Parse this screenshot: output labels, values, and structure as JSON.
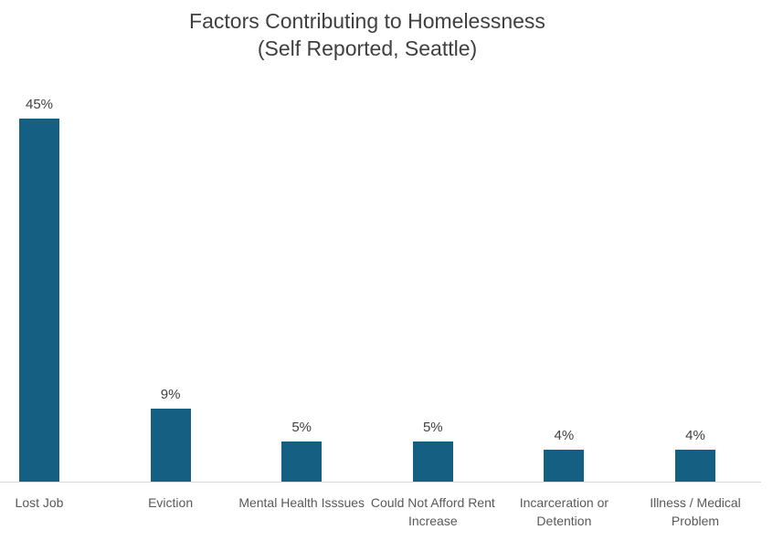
{
  "chart_data": {
    "type": "bar",
    "title": "Factors Contributing to Homelessness",
    "subtitle": "(Self Reported, Seattle)",
    "categories": [
      "Lost Job",
      "Eviction",
      "Mental Health Isssues",
      "Could Not Afford Rent Increase",
      "Incarceration or Detention",
      "Illness / Medical Problem"
    ],
    "values": [
      45,
      9,
      5,
      5,
      4,
      4
    ],
    "data_labels": [
      "45%",
      "9%",
      "5%",
      "5%",
      "4%",
      "4%"
    ],
    "xlabel": "",
    "ylabel": "",
    "ylim": [
      0,
      50
    ],
    "grid": false,
    "legend": false,
    "colors": {
      "bar": "#156082",
      "title_text": "#404040",
      "value_label_text": "#404040",
      "category_label_text": "#595959",
      "axis_line": "#d9d9d9",
      "background": "#ffffff"
    }
  }
}
